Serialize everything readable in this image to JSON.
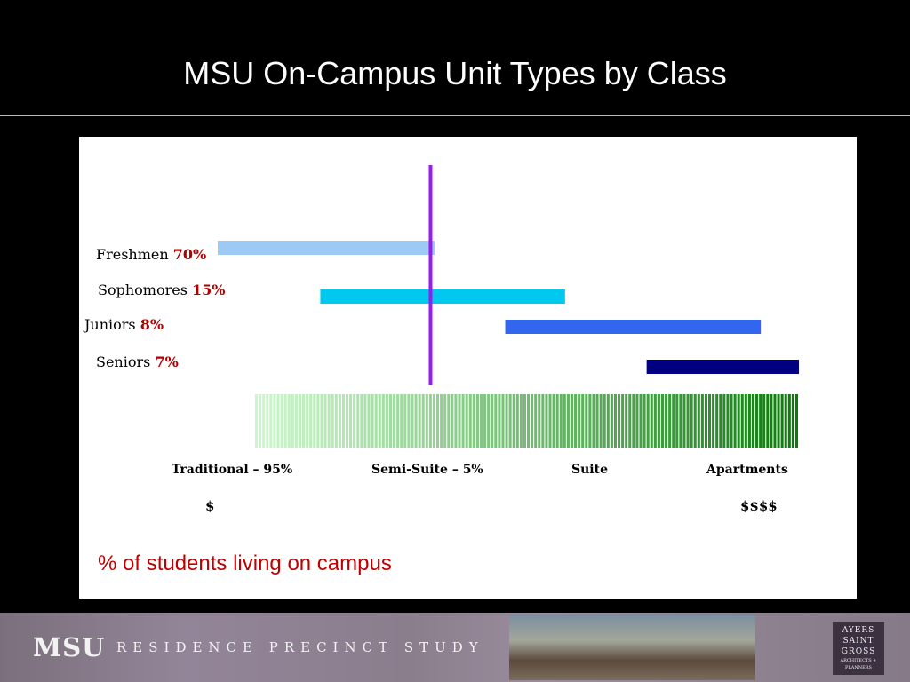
{
  "slide": {
    "title": "MSU On-Campus Unit Types by Class",
    "note": "% of students living on campus"
  },
  "chart_data": {
    "type": "bar",
    "x_scale": {
      "min": 0,
      "max": 100
    },
    "marker_x": 29,
    "series": [
      {
        "name": "Freshmen",
        "percent": "70%",
        "start": 0,
        "end": 33,
        "color": "#9ccaf5"
      },
      {
        "name": "Sophomores",
        "percent": "15%",
        "start": 12,
        "end": 57,
        "color": "#00c8ef"
      },
      {
        "name": "Juniors",
        "percent": "8%",
        "start": 46,
        "end": 93,
        "color": "#3366ee"
      },
      {
        "name": "Seniors",
        "percent": "7%",
        "start": 72,
        "end": 100,
        "color": "#000080"
      }
    ],
    "unit_types": [
      "Traditional – 95%",
      "Semi-Suite – 5%",
      "Suite",
      "Apartments"
    ],
    "cost_scale": [
      "$",
      "$$$$"
    ],
    "gradient_colors": [
      "#ccf7cc",
      "#0a7a0a"
    ]
  },
  "footer": {
    "logo": "MSU",
    "study": "RESIDENCE PRECINCT STUDY",
    "firm_lines": [
      "AYERS",
      "SAINT",
      "GROSS"
    ],
    "firm_tagline": "ARCHITECTS + PLANNERS"
  }
}
